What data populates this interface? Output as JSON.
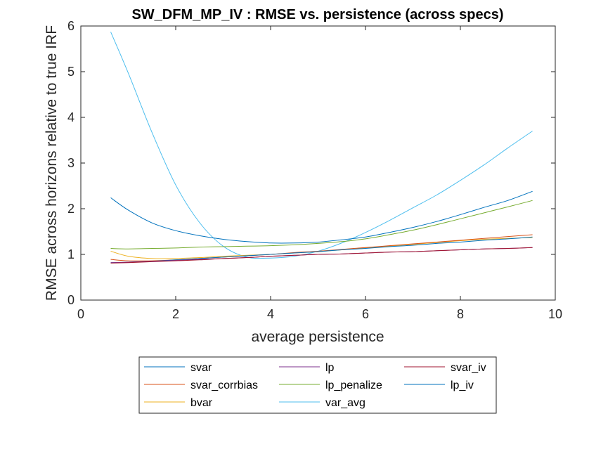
{
  "chart_data": {
    "type": "line",
    "title": "SW_DFM_MP_IV : RMSE vs. persistence (across specs)",
    "xlabel": "average persistence",
    "ylabel": "RMSE across horizons relative to true IRF",
    "xlim": [
      0,
      10
    ],
    "ylim": [
      0,
      6
    ],
    "x_ticks": [
      0,
      2,
      4,
      6,
      8,
      10
    ],
    "y_ticks": [
      0,
      1,
      2,
      3,
      4,
      5,
      6
    ],
    "x_tick_labels": [
      "0",
      "2",
      "4",
      "6",
      "8",
      "10"
    ],
    "y_tick_labels": [
      "0",
      "1",
      "2",
      "3",
      "4",
      "5",
      "6"
    ],
    "grid": false,
    "legend_position": "below",
    "legend_columns": 3,
    "x": [
      0.63,
      1.0,
      1.5,
      2.0,
      2.5,
      3.0,
      3.5,
      4.0,
      4.5,
      5.0,
      5.5,
      6.0,
      6.5,
      7.0,
      7.5,
      8.0,
      8.5,
      9.0,
      9.52
    ],
    "series": [
      {
        "name": "svar",
        "color": "#0072BD",
        "values": [
          0.82,
          0.83,
          0.85,
          0.88,
          0.91,
          0.94,
          0.97,
          1.0,
          1.03,
          1.06,
          1.1,
          1.13,
          1.17,
          1.2,
          1.24,
          1.27,
          1.31,
          1.34,
          1.38
        ]
      },
      {
        "name": "lp",
        "color": "#7E2F8E",
        "values": [
          0.82,
          0.83,
          0.85,
          0.87,
          0.89,
          0.91,
          0.93,
          0.96,
          0.98,
          1.0,
          1.01,
          1.03,
          1.05,
          1.06,
          1.08,
          1.1,
          1.12,
          1.13,
          1.15
        ]
      },
      {
        "name": "svar_iv",
        "color": "#A2142F",
        "values": [
          0.81,
          0.82,
          0.84,
          0.86,
          0.88,
          0.91,
          0.93,
          0.96,
          0.98,
          1.0,
          1.01,
          1.03,
          1.05,
          1.06,
          1.08,
          1.1,
          1.12,
          1.13,
          1.15
        ]
      },
      {
        "name": "svar_corrbias",
        "color": "#D95319",
        "values": [
          0.89,
          0.86,
          0.86,
          0.88,
          0.91,
          0.94,
          0.97,
          1.0,
          1.04,
          1.07,
          1.11,
          1.15,
          1.19,
          1.23,
          1.27,
          1.31,
          1.35,
          1.39,
          1.43
        ]
      },
      {
        "name": "lp_penalize",
        "color": "#77AC30",
        "values": [
          1.13,
          1.12,
          1.13,
          1.14,
          1.16,
          1.17,
          1.18,
          1.19,
          1.21,
          1.24,
          1.28,
          1.34,
          1.43,
          1.53,
          1.65,
          1.78,
          1.91,
          2.04,
          2.18
        ]
      },
      {
        "name": "lp_iv",
        "color": "#0072BD",
        "values": [
          2.24,
          1.97,
          1.69,
          1.52,
          1.41,
          1.33,
          1.28,
          1.25,
          1.25,
          1.27,
          1.32,
          1.38,
          1.48,
          1.59,
          1.72,
          1.87,
          2.03,
          2.18,
          2.38
        ]
      },
      {
        "name": "bvar",
        "color": "#EDB120",
        "values": [
          1.07,
          0.96,
          0.91,
          0.91,
          0.93,
          0.96,
          0.98,
          1.0,
          1.03,
          1.06,
          1.1,
          1.14,
          1.18,
          1.22,
          1.26,
          1.3,
          1.33,
          1.35,
          1.37
        ]
      },
      {
        "name": "var_avg",
        "color": "#4DBEEE",
        "values": [
          5.87,
          4.97,
          3.67,
          2.52,
          1.7,
          1.18,
          0.94,
          0.92,
          0.96,
          1.07,
          1.25,
          1.48,
          1.74,
          2.02,
          2.3,
          2.62,
          2.96,
          3.33,
          3.7
        ]
      }
    ]
  }
}
